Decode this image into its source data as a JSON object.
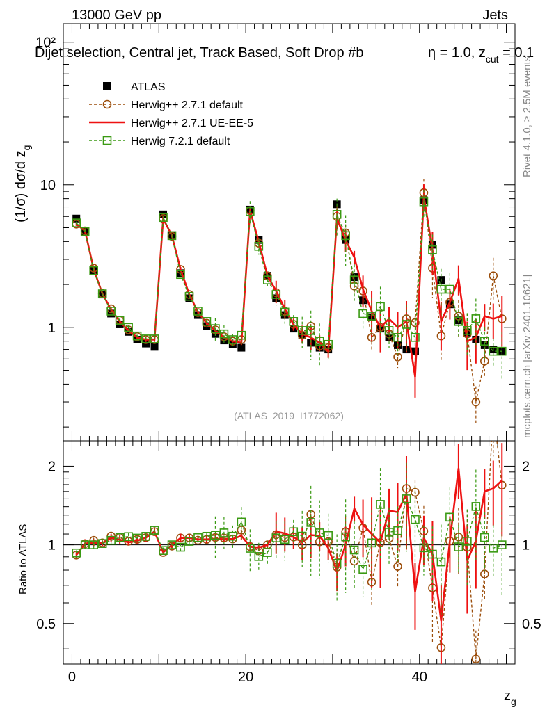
{
  "header": {
    "left": "13000 GeV pp",
    "right": "Jets"
  },
  "chart_data": {
    "type": "scatter",
    "title": "Dijet selection, Central jet, Track Based, Soft Drop #b = 1.0, z_cut = 0.1",
    "title_parts": {
      "pre": "Dijet selection, Central jet, Track Based, Soft Drop #b",
      "eta": "η = 1.0, z",
      "cut": "cut",
      "post": " = 0.1"
    },
    "xlabel": "z",
    "xlabel_sub": "g",
    "ylabel": "(1/σ) dσ/d z",
    "ylabel_sub": "g",
    "ratio_ylabel": "Ratio to ATLAS",
    "watermark": "(ATLAS_2019_I1772062)",
    "side_text_top": "Rivet 4.1.0, ≥ 2.5M events",
    "side_text_bottom": "mcplots.cern.ch [arXiv:2401.10621]",
    "xlim": [
      -1,
      51
    ],
    "ylim": [
      0.16,
      135
    ],
    "ratio_ylim": [
      0.35,
      2.5
    ],
    "x_ticks": [
      0,
      20,
      40
    ],
    "y_tick_labels": [
      "1",
      "10",
      "10²"
    ],
    "ratio_tick_labels": [
      "0.5",
      "1",
      "2"
    ],
    "legend": [
      "ATLAS",
      "Herwig++ 2.7.1 default",
      "Herwig++ 2.7.1 UE-EE-5",
      "Herwig 7.2.1 default"
    ],
    "colors": {
      "data": "#000000",
      "hpp_default": "#9b4d0a",
      "hpp_ue": "#ee1111",
      "h7": "#3a9a13"
    },
    "x": [
      0.5,
      1.5,
      2.5,
      3.5,
      4.5,
      5.5,
      6.5,
      7.5,
      8.5,
      9.5,
      10.5,
      11.5,
      12.5,
      13.5,
      14.5,
      15.5,
      16.5,
      17.5,
      18.5,
      19.5,
      20.5,
      21.5,
      22.5,
      23.5,
      24.5,
      25.5,
      26.5,
      27.5,
      28.5,
      29.5,
      30.5,
      31.5,
      32.5,
      33.5,
      34.5,
      35.5,
      36.5,
      37.5,
      38.5,
      39.5,
      40.5,
      41.5,
      42.5,
      43.5,
      44.5,
      45.5,
      46.5,
      47.5,
      48.5,
      49.5
    ],
    "atlas": [
      5.8,
      4.7,
      2.5,
      1.7,
      1.25,
      1.05,
      0.93,
      0.82,
      0.77,
      0.73,
      6.2,
      4.4,
      2.4,
      1.6,
      1.22,
      1.02,
      0.9,
      0.81,
      0.76,
      0.72,
      6.7,
      4.1,
      2.3,
      1.6,
      1.22,
      0.98,
      0.88,
      0.78,
      0.72,
      0.7,
      7.3,
      4.1,
      2.25,
      1.55,
      1.18,
      0.98,
      0.85,
      0.75,
      0.7,
      0.68,
      7.8,
      3.8,
      2.15,
      1.45,
      1.12,
      0.92,
      0.82,
      0.75,
      0.7,
      0.68
    ],
    "series": [
      {
        "name": "Herwig++ 2.7.1 default",
        "values": [
          5.3,
          4.75,
          2.6,
          1.73,
          1.35,
          1.12,
          0.96,
          0.86,
          0.82,
          0.82,
          5.8,
          4.35,
          2.55,
          1.7,
          1.27,
          1.07,
          0.96,
          0.86,
          0.8,
          0.82,
          6.6,
          3.9,
          2.3,
          1.75,
          1.3,
          1.05,
          0.88,
          1.02,
          0.74,
          0.72,
          6.0,
          4.6,
          1.95,
          1.8,
          0.85,
          1.0,
          0.9,
          0.62,
          1.15,
          1.08,
          8.8,
          2.6,
          0.87,
          1.5,
          1.2,
          0.9,
          0.3,
          0.58,
          2.3,
          1.15
        ]
      },
      {
        "name": "Herwig++ 2.7.1 UE-EE-5",
        "values": [
          5.3,
          4.75,
          2.55,
          1.72,
          1.33,
          1.1,
          0.95,
          0.85,
          0.82,
          0.82,
          5.8,
          4.4,
          2.55,
          1.7,
          1.28,
          1.07,
          0.95,
          0.85,
          0.8,
          0.78,
          6.6,
          4.0,
          2.3,
          1.8,
          1.35,
          1.05,
          0.9,
          0.85,
          0.78,
          0.68,
          5.8,
          4.1,
          3.1,
          1.85,
          1.3,
          1.0,
          1.15,
          1.0,
          1.1,
          0.45,
          8.3,
          3.5,
          1.1,
          1.5,
          2.2,
          0.8,
          0.85,
          1.2,
          1.15,
          1.2
        ]
      },
      {
        "name": "Herwig 7.2.1 default",
        "values": [
          5.4,
          4.7,
          2.5,
          1.72,
          1.3,
          1.12,
          1.0,
          0.87,
          0.83,
          0.83,
          5.9,
          4.4,
          2.35,
          1.65,
          1.3,
          1.1,
          0.98,
          0.9,
          0.82,
          0.88,
          6.5,
          3.7,
          2.15,
          1.7,
          1.28,
          1.1,
          0.95,
          0.95,
          0.8,
          0.76,
          6.2,
          4.4,
          2.15,
          1.25,
          1.2,
          1.4,
          0.95,
          0.85,
          1.05,
          0.85,
          7.6,
          3.5,
          1.85,
          1.85,
          1.1,
          0.95,
          1.15,
          0.8,
          0.68,
          0.68
        ]
      }
    ]
  }
}
